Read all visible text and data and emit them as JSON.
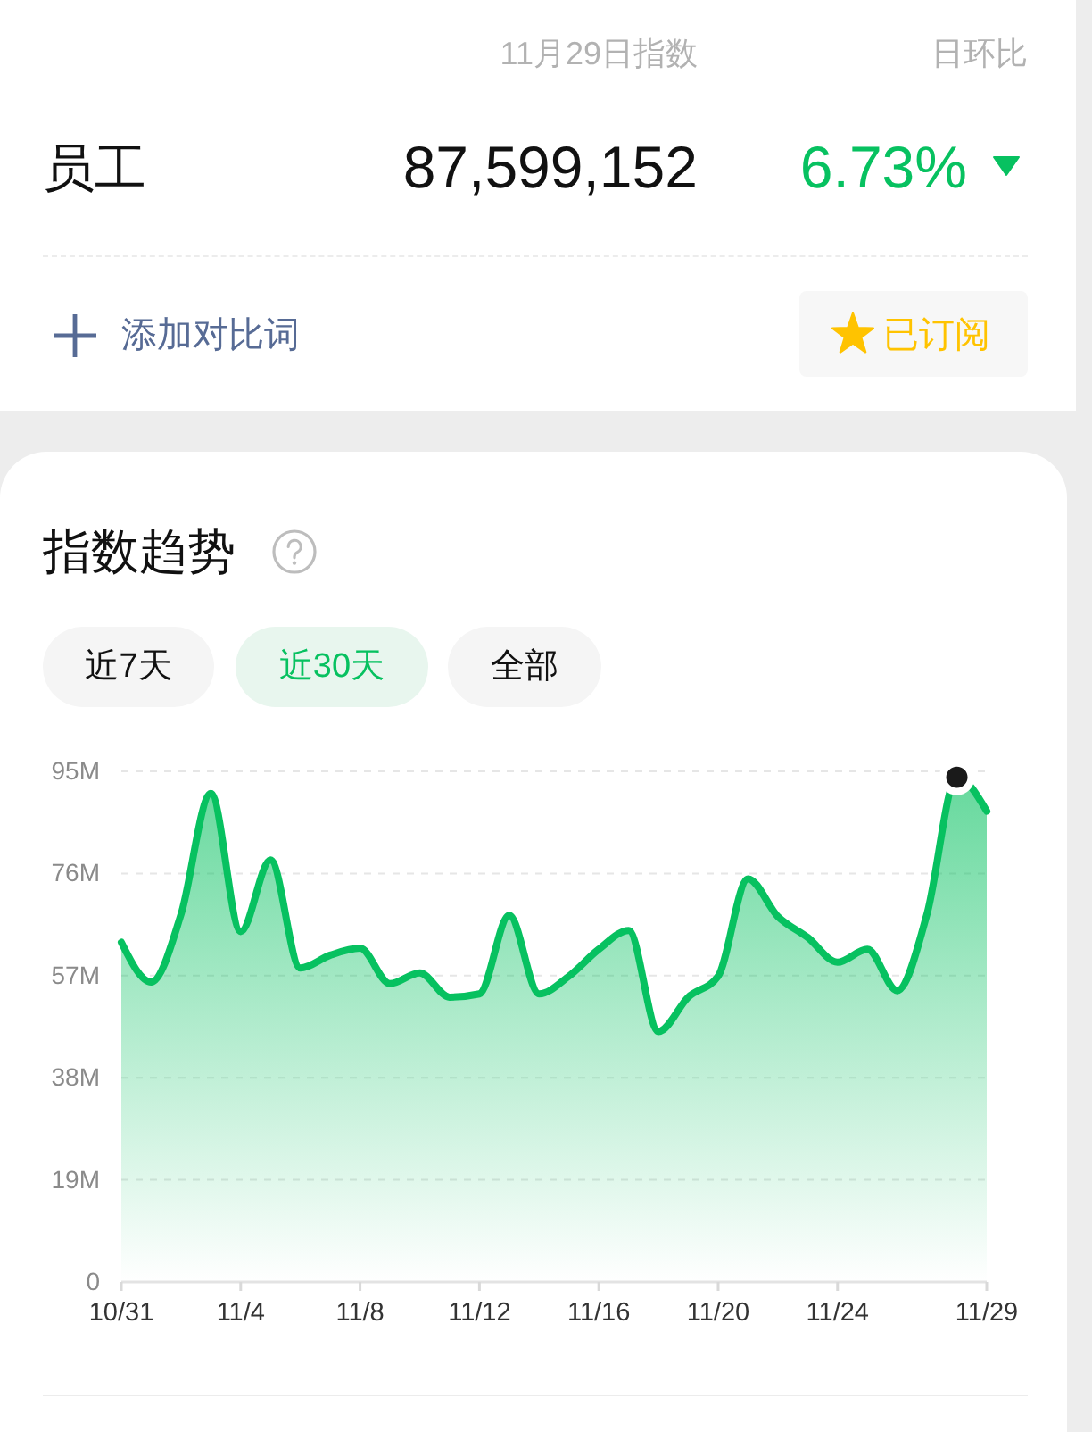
{
  "chart_data": [
    {
      "type": "other",
      "annotations": [
        "11月29日指数",
        "日环比",
        "员工",
        "87,599,152",
        "6.73%",
        "添加对比词",
        "已订阅"
      ]
    },
    {
      "type": "area",
      "title": "指数趋势",
      "annotations": [
        "近7天",
        "近30天",
        "全部"
      ],
      "x": [
        "--10-31",
        "--11-01",
        "--11-02",
        "--11-03",
        "--11-04",
        "--11-05",
        "--11-06",
        "--11-07",
        "--11-08",
        "--11-09",
        "--11-10",
        "--11-11",
        "--11-12",
        "--11-13",
        "--11-14",
        "--11-15",
        "--11-16",
        "--11-17",
        "--11-18",
        "--11-19",
        "--11-20",
        "--11-21",
        "--11-22",
        "--11-23",
        "--11-24",
        "--11-25",
        "--11-26",
        "--11-27",
        "--11-28",
        "--11-29"
      ],
      "series": [
        {
          "type": "area",
          "color": "#07c160",
          "values": [
            63.2,
            55.8,
            68.4,
            90.9,
            65.2,
            78.5,
            58.4,
            60.8,
            62.1,
            55.5,
            57.5,
            53.0,
            53.6,
            68.2,
            53.6,
            56.9,
            61.9,
            65.4,
            46.6,
            53.0,
            56.9,
            75.0,
            68.0,
            64.1,
            59.5,
            61.9,
            54.2,
            68.5,
            93.9,
            87.6
          ]
        },
        {
          "type": "scatter",
          "color": "#1a1a1a",
          "marker": "circle",
          "x": [
            "--11-28"
          ],
          "values": [
            93.9
          ]
        }
      ],
      "xlim": [
        "--10-31",
        "--11-29"
      ],
      "xticks": [
        {
          "value": "--10-31",
          "label": "10/31"
        },
        {
          "value": "--11-04",
          "label": "11/4"
        },
        {
          "value": "--11-08",
          "label": "11/8"
        },
        {
          "value": "--11-12",
          "label": "11/12"
        },
        {
          "value": "--11-16",
          "label": "11/16"
        },
        {
          "value": "--11-20",
          "label": "11/20"
        },
        {
          "value": "--11-24",
          "label": "11/24"
        },
        {
          "value": "--11-29",
          "label": "11/29"
        }
      ],
      "ylim": [
        0,
        95
      ],
      "yticks": [
        0,
        {
          "value": 19,
          "label": "19M"
        },
        {
          "value": 38,
          "label": "38M"
        },
        {
          "value": 57,
          "label": "57M"
        },
        {
          "value": 76,
          "label": "76M"
        },
        {
          "value": 95,
          "label": "95M"
        }
      ],
      "grid": "y"
    }
  ]
}
